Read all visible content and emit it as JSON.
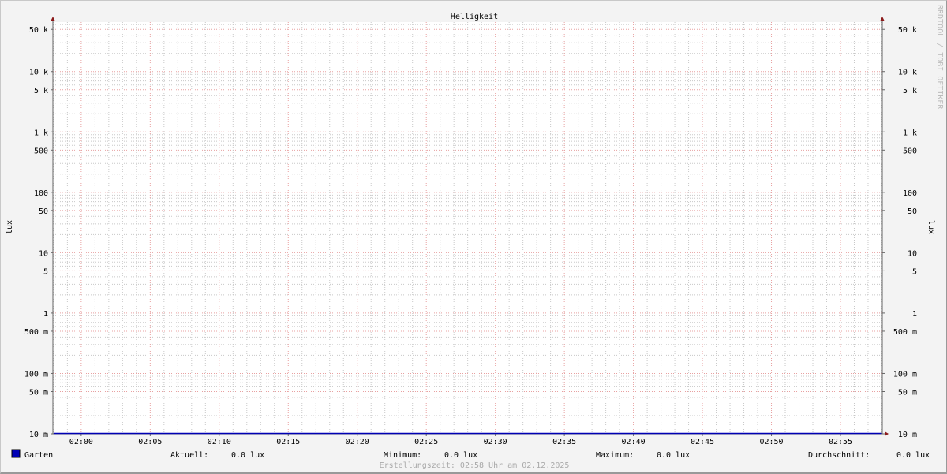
{
  "chart_data": {
    "type": "line",
    "title": "Helligkeit",
    "ylabel": "lux",
    "y_scale": "log",
    "ylim": [
      0.01,
      66000
    ],
    "xlim": [
      "01:58",
      "02:58"
    ],
    "grid": true,
    "y_ticks": [
      {
        "v": 50000,
        "l": "50 k"
      },
      {
        "v": 10000,
        "l": "10 k"
      },
      {
        "v": 5000,
        "l": "5 k"
      },
      {
        "v": 1000,
        "l": "1 k"
      },
      {
        "v": 500,
        "l": "500"
      },
      {
        "v": 100,
        "l": "100"
      },
      {
        "v": 50,
        "l": "50"
      },
      {
        "v": 10,
        "l": "10"
      },
      {
        "v": 5,
        "l": "5"
      },
      {
        "v": 1,
        "l": "1"
      },
      {
        "v": 0.5,
        "l": "500 m"
      },
      {
        "v": 0.1,
        "l": "100 m"
      },
      {
        "v": 0.05,
        "l": "50 m"
      },
      {
        "v": 0.01,
        "l": "10 m"
      }
    ],
    "x_ticks": [
      "02:00",
      "02:05",
      "02:10",
      "02:15",
      "02:20",
      "02:25",
      "02:30",
      "02:35",
      "02:40",
      "02:45",
      "02:50",
      "02:55"
    ],
    "series": [
      {
        "name": "Garten",
        "color": "#0000b4",
        "x": [
          "01:58",
          "02:58"
        ],
        "values": [
          0,
          0
        ]
      }
    ]
  },
  "legend": {
    "series_name": "Garten",
    "aktuell_label": "Aktuell:",
    "aktuell": "0.0 lux",
    "minimum_label": "Minimum:",
    "minimum": "0.0 lux",
    "maximum_label": "Maximum:",
    "maximum": "0.0 lux",
    "avg_label": "Durchschnitt:",
    "avg": "0.0 lux"
  },
  "footer": "Erstellungszeit: 02:58 Uhr am 02.12.2025",
  "watermark": "RRDTOOL / TOBI OETIKER",
  "colors": {
    "major_grid": "#e8a0a0",
    "minor_grid": "#c8c8c8",
    "axis": "#666666",
    "arrow": "#8b1a1a"
  }
}
